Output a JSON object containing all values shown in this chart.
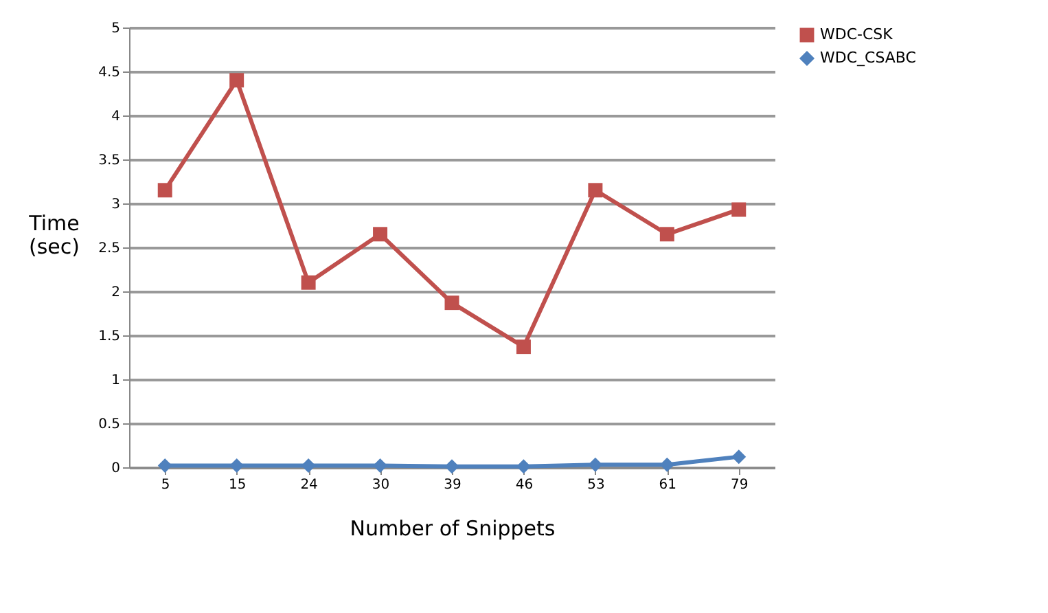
{
  "chart_data": {
    "type": "line",
    "xlabel": "Number of Snippets",
    "ylabel": "Time\n(sec)",
    "categories": [
      "5",
      "15",
      "24",
      "30",
      "39",
      "46",
      "53",
      "61",
      "79"
    ],
    "series": [
      {
        "name": "WDC-CSK",
        "color": "#c0504d",
        "marker": "square",
        "values": [
          3.15,
          4.4,
          2.1,
          2.65,
          1.87,
          1.37,
          3.15,
          2.65,
          2.93
        ]
      },
      {
        "name": "WDC_CSABC",
        "color": "#4f81bd",
        "marker": "diamond",
        "values": [
          0.02,
          0.02,
          0.02,
          0.02,
          0.01,
          0.01,
          0.03,
          0.03,
          0.12
        ]
      }
    ],
    "ylim": [
      0,
      5
    ],
    "yticks": [
      0,
      0.5,
      1,
      1.5,
      2,
      2.5,
      3,
      3.5,
      4,
      4.5,
      5
    ],
    "grid": "y",
    "legend": "right",
    "line_style": "solid"
  }
}
